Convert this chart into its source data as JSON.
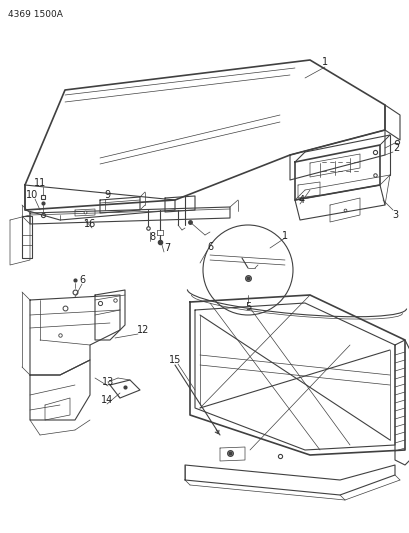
{
  "title": "4369 1500A",
  "bg_color": "#ffffff",
  "line_color": "#404040",
  "label_color": "#222222",
  "title_fontsize": 6.5,
  "label_fontsize": 7,
  "fig_width": 4.1,
  "fig_height": 5.33,
  "dpi": 100
}
